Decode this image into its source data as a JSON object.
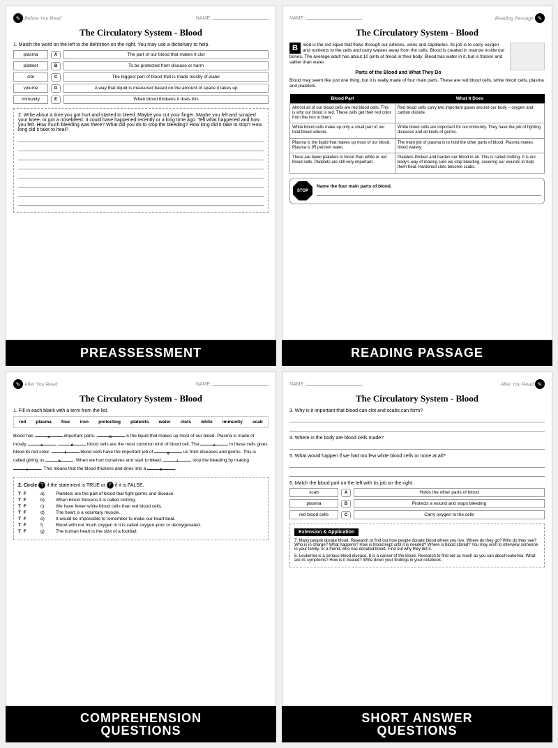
{
  "common": {
    "title": "The Circulatory System - Blood",
    "nameLabel": "NAME:",
    "beforeRead": "Before You Read",
    "afterRead": "After You Read",
    "readingPassage": "Reading Passage"
  },
  "p1": {
    "label": "PREASSESSMENT",
    "q1": "1.  Match the word on the left to the definition on the right.  You may use a dictionary to help.",
    "terms": [
      "plasma",
      "platelet",
      "clot",
      "volume",
      "immunity"
    ],
    "letters": [
      "A",
      "B",
      "C",
      "D",
      "E"
    ],
    "defs": [
      "The part of our blood that makes it clot",
      "To be protected from disease or harm",
      "The biggest part of blood that is made mostly of water",
      "A way that liquid is measured based on the amount of space it takes up",
      "When blood thickens it does this"
    ],
    "q2": "2.  Write about a time you got hurt and started to bleed.  Maybe you cut your finger.  Maybe you fell and scraped your knee, or got a nosebleed.  It could have happened recently or a long time ago.  Tell what happened and how you felt. How much bleeding was there?  What did you do to stop the bleeding?  How long did it take to stop? How long did it take to heal?"
  },
  "p2": {
    "label": "READING PASSAGE",
    "intro": "lood is the red liquid that flows through our arteries, veins and capillaries. Its job is to carry oxygen and nutrients to the cells and carry wastes away from the cells. Blood is created in marrow inside our bones. The average adult has about 10 pints of blood in their body. Blood has water in it, but is thicker and saltier than water.",
    "sub": "Parts of the Blood and What They Do",
    "lead": "Blood may seem like just one thing, but it is really made of four main parts. These are red blood cells, white blood cells, plasma and platelets.",
    "th1": "Blood Part",
    "th2": "What It Does",
    "rows": [
      [
        "Almost all of our blood cells are red blood cells. This is why our blood is red. These cells get their red color from the iron in them.",
        "Red blood cells carry two important gases around our body – oxygen and carbon dioxide."
      ],
      [
        "White blood cells make up only a small part of our total blood volume.",
        "White blood cells are important for our immunity. They have the job of fighting diseases and all kinds of germs."
      ],
      [
        "Plasma is the liquid that makes up most of our blood. Plasma is 95 percent water.",
        "The main job of plasma is to hold the other parts of blood. Plasma makes blood watery."
      ],
      [
        "There are fewer platelets in blood than white or red blood cells. Platelets are still very important.",
        "Platelets thicken and harden our blood in air. This is called clotting. It is our body's way of making sure we stop bleeding, covering our wounds to help them heal. Hardened clots become scabs."
      ]
    ],
    "stopQ": "Name the four main parts of blood."
  },
  "p3": {
    "label": "COMPREHENSION QUESTIONS",
    "q1": "1.  Fill in each blank with a term from the list.",
    "bank": [
      "red",
      "plasma",
      "four",
      "iron",
      "protecting",
      "platelets",
      "water",
      "clots",
      "white",
      "immunity",
      "scab"
    ],
    "fill": {
      "t1": "Blood has ",
      "t2": " important parts. ",
      "t3": " is the liquid that makes up most of our blood.  Plasma is made of mostly ",
      "t4": ".  ",
      "t5": " blood cells are the most common kind of blood cell.  The ",
      "t6": " in these cells gives blood its red color. ",
      "t7": " blood cells have the important job of ",
      "t8": " us from diseases and germs.  This is called giving us ",
      "t9": ".  When we hurt ourselves and start to bleed, ",
      "t10": " stop the bleeding by making ",
      "t11": ".  This means that the blood thickens and dries into a ",
      "t12": "."
    },
    "subs": [
      "a",
      "b",
      "c",
      "d",
      "e",
      "f",
      "g",
      "h",
      "i",
      "j",
      "k"
    ],
    "q2": "2.  Circle T if the statement is TRUE or F if it is FALSE.",
    "tf": [
      {
        "l": "a)",
        "t": "Platelets are the part of blood that fight germs and disease."
      },
      {
        "l": "b)",
        "t": "When blood thickens it is called clotting."
      },
      {
        "l": "c)",
        "t": "We have fewer white blood cells than red blood cells."
      },
      {
        "l": "d)",
        "t": "The heart is a voluntary muscle."
      },
      {
        "l": "e)",
        "t": "It would be impossible to remember to make our heart beat."
      },
      {
        "l": "f)",
        "t": "Blood with not much oxygen in it is called oxygen-poor or deoxygenated."
      },
      {
        "l": "g)",
        "t": "The human heart is the size of a football."
      }
    ]
  },
  "p4": {
    "label": "SHORT ANSWER QUESTIONS",
    "q3": "3.  Why is it important that blood can clot and scabs can form?",
    "q4": "4.  Where in the body are blood cells made?",
    "q5": "5.  What would happen if we had too few white blood cells or none at all?",
    "q6": "6.  Match the blood part on the left with its job on the right.",
    "terms": [
      "scab",
      "plasma",
      "red blood cells"
    ],
    "letters": [
      "A",
      "B",
      "C"
    ],
    "defs": [
      "Holds the other parts of blood",
      "Protects a wound and stops bleeding",
      "Carry oxygen to the cells"
    ],
    "extHdr": "Extension & Application",
    "e7": "7.  Many people donate blood. Research to find out how people donate blood where you live. Where do they go? Who do they see? Who is in charge? What happens? How is blood kept until it is needed? Where is blood stored? You may wish to interview someone in your family, or a friend, who has donated blood. Find out why they did it.",
    "e8": "8.  Leukemia is a serious blood disease. It is a cancer of the blood. Research to find out as much as you can about leukemia. What are its symptoms? How is it treated? Write down your findings in your notebook."
  }
}
